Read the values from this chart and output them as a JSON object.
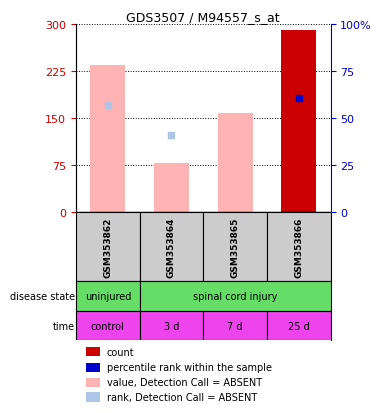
{
  "title": "GDS3507 / M94557_s_at",
  "samples": [
    "GSM353862",
    "GSM353864",
    "GSM353865",
    "GSM353866"
  ],
  "left_ylim": [
    0,
    300
  ],
  "right_ylim": [
    0,
    100
  ],
  "left_yticks": [
    0,
    75,
    150,
    225,
    300
  ],
  "right_yticks": [
    0,
    25,
    50,
    75,
    100
  ],
  "right_yticklabels": [
    "0",
    "25",
    "50",
    "75",
    "100%"
  ],
  "bar_values": [
    235,
    78,
    157,
    290
  ],
  "absent_color": "#ffb3b3",
  "present_color": "#cc0000",
  "rank_absent_vals": [
    170,
    123,
    null,
    null
  ],
  "rank_absent_color": "#adc6e8",
  "percentile_present_val": 182,
  "percentile_present_color": "#0000cc",
  "time_labels": [
    "control",
    "3 d",
    "7 d",
    "25 d"
  ],
  "time_color": "#ee44ee",
  "green_color": "#66dd66",
  "sample_box_color": "#cccccc",
  "left_axis_color": "#cc0000",
  "right_axis_color": "#0000cc",
  "legend_items": [
    {
      "label": "count",
      "color": "#cc0000"
    },
    {
      "label": "percentile rank within the sample",
      "color": "#0000cc"
    },
    {
      "label": "value, Detection Call = ABSENT",
      "color": "#ffb3b3"
    },
    {
      "label": "rank, Detection Call = ABSENT",
      "color": "#adc6e8"
    }
  ]
}
